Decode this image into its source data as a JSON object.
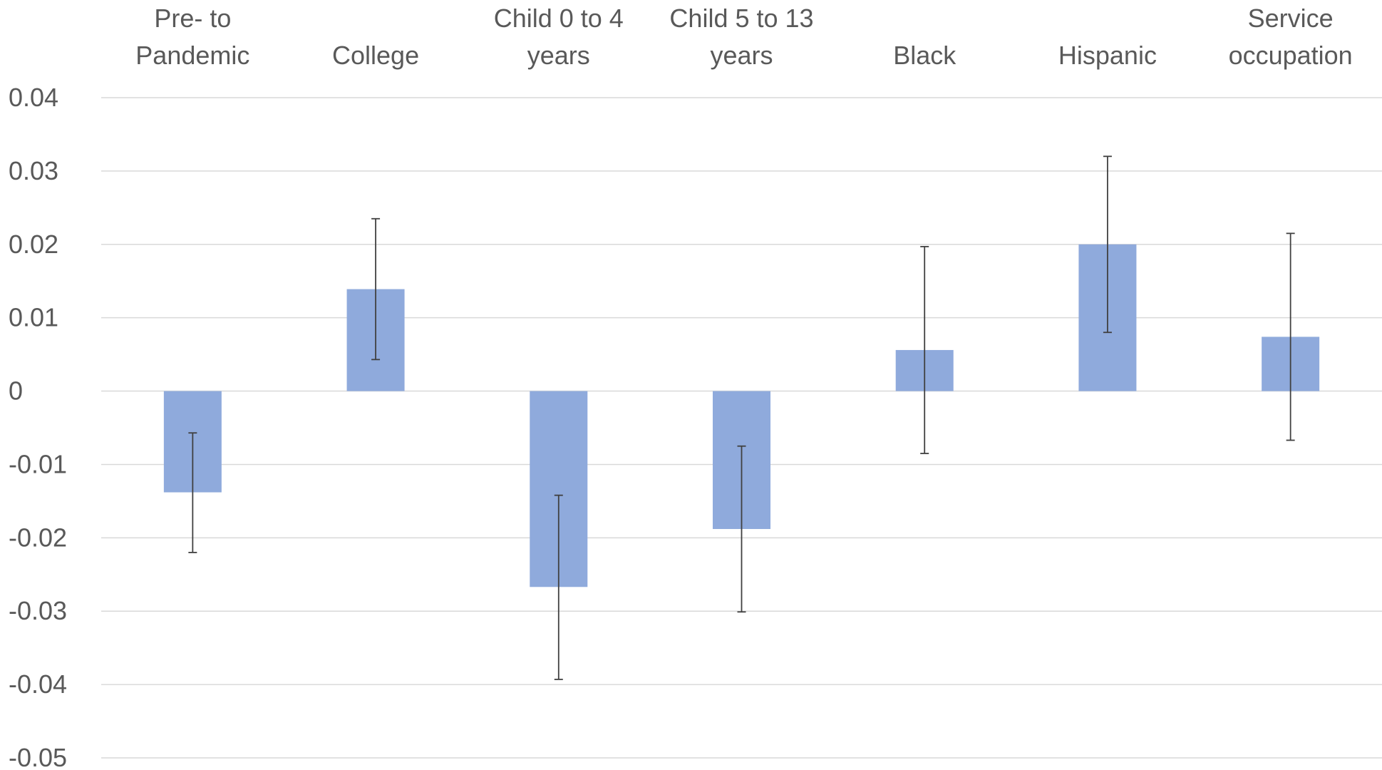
{
  "chart_data": {
    "type": "bar",
    "title": "",
    "xlabel": "",
    "ylabel": "",
    "categories": [
      [
        "Pre- to",
        "Pandemic"
      ],
      [
        "College"
      ],
      [
        "Child 0 to 4",
        "years"
      ],
      [
        "Child 5 to 13",
        "years"
      ],
      [
        "Black"
      ],
      [
        "Hispanic"
      ],
      [
        "Service",
        "occupation"
      ]
    ],
    "values": [
      -0.0138,
      0.0139,
      -0.0267,
      -0.0188,
      0.0056,
      0.02,
      0.0074
    ],
    "error_low": [
      -0.022,
      0.0043,
      -0.0393,
      -0.0301,
      -0.0085,
      0.008,
      -0.0067
    ],
    "error_high": [
      -0.0057,
      0.0235,
      -0.0142,
      -0.0075,
      0.0197,
      0.032,
      0.0215
    ],
    "ylim": [
      -0.05,
      0.04
    ],
    "yticks": [
      0.04,
      0.03,
      0.02,
      0.01,
      0,
      -0.01,
      -0.02,
      -0.03,
      -0.04,
      -0.05
    ],
    "ytick_labels": [
      "0.04",
      "0.03",
      "0.02",
      "0.01",
      "0",
      "-0.01",
      "-0.02",
      "-0.03",
      "-0.04",
      "-0.05"
    ],
    "category_axis_position": "top",
    "grid": true,
    "legend": "none",
    "colors": {
      "bar": "#8faadc",
      "gridline": "#d9d9d9",
      "error_bar": "#404040",
      "text": "#595959"
    }
  }
}
